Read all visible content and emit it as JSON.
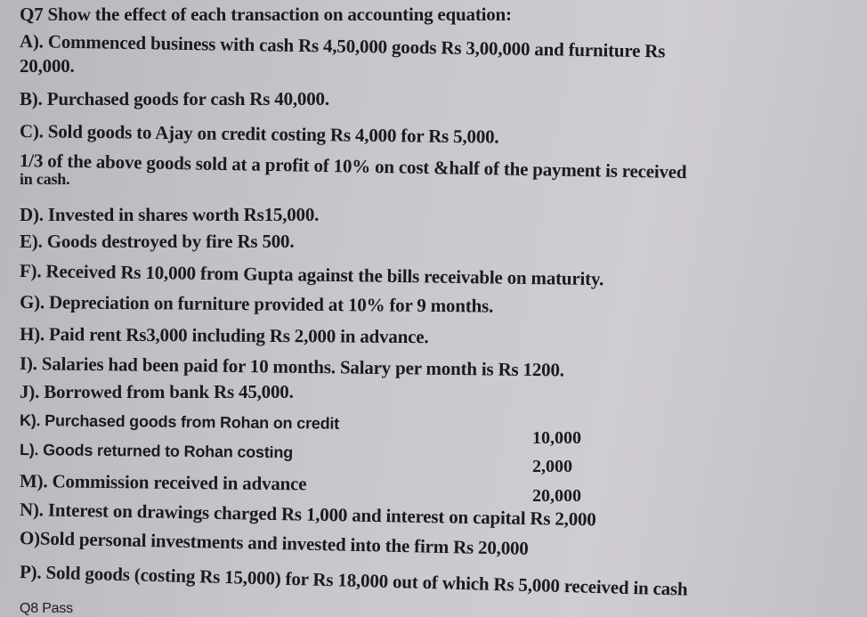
{
  "question": "Q7 Show the effect of each transaction on accounting equation:",
  "lines": [
    "A). Commenced business with cash Rs 4,50,000 goods Rs 3,00,000 and furniture Rs",
    "20,000.",
    "B). Purchased goods for cash Rs 40,000.",
    "C). Sold goods to Ajay on credit costing Rs 4,000 for Rs 5,000.",
    "1/3 of the above goods sold at a profit of 10% on cost  &half of the payment is received",
    "in cash.",
    "D). Invested in shares worth Rs15,000.",
    "E). Goods destroyed by fire Rs 500.",
    "F). Received Rs 10,000 from Gupta against the bills receivable on maturity.",
    "G). Depreciation on furniture provided at 10% for 9 months.",
    "H). Paid rent Rs3,000 including Rs 2,000 in advance.",
    "I). Salaries had been paid for 10 months. Salary per month is Rs 1200.",
    "J). Borrowed from bank Rs 45,000.",
    "K). Purchased goods from Rohan on credit",
    "L). Goods returned to Rohan costing",
    "M). Commission received in advance",
    "N). Interest on drawings charged Rs 1,000 and interest on capital Rs 2,000",
    "O)Sold personal investments and invested into the firm Rs 20,000",
    "P). Sold goods (costing Rs 15,000) for Rs 18,000 out of which Rs 5,000 received in cash",
    "Q8 Pass"
  ],
  "amounts": [
    "10,000",
    "2,000",
    "20,000"
  ]
}
